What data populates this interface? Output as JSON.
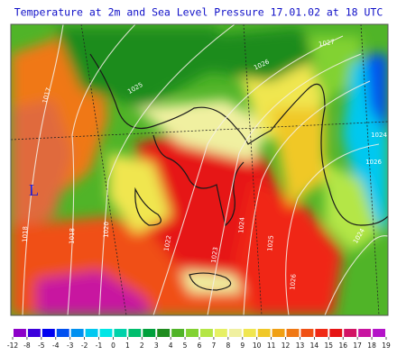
{
  "title": "Temperature at 2m and Sea Level Pressure 17.01.02 at 18 UTC",
  "low_marker": "L",
  "isobar_labels": [
    "1017",
    "1018",
    "1018",
    "1020",
    "1022",
    "1023",
    "1024",
    "1025",
    "1024",
    "1025",
    "1026",
    "1027",
    "1026",
    "1026",
    "1024"
  ],
  "legend": {
    "ticks": [
      -12,
      -8,
      -5,
      -4,
      -3,
      -2,
      -1,
      0,
      1,
      2,
      3,
      4,
      5,
      6,
      7,
      8,
      9,
      10,
      11,
      12,
      13,
      14,
      15,
      16,
      17,
      18,
      19
    ],
    "colors": [
      "#8c00c8",
      "#3c00dc",
      "#0000f0",
      "#0050f0",
      "#0090f0",
      "#00c8f0",
      "#00e6e6",
      "#00d2aa",
      "#00be6e",
      "#00a03c",
      "#1e8c1e",
      "#50b428",
      "#82d232",
      "#b4e646",
      "#e6f064",
      "#f0f0a0",
      "#f0e650",
      "#f0c828",
      "#f0a014",
      "#f07814",
      "#f05014",
      "#f02814",
      "#e61414",
      "#d21464",
      "#c814a0",
      "#b414c8"
    ]
  }
}
